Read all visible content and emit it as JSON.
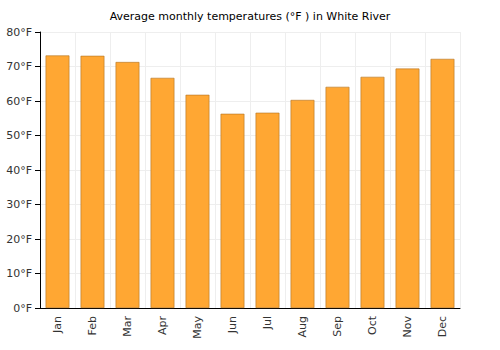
{
  "chart_data": {
    "type": "bar",
    "title": "Average monthly temperatures (°F ) in White River",
    "categories": [
      "Jan",
      "Feb",
      "Mar",
      "Apr",
      "May",
      "Jun",
      "Jul",
      "Aug",
      "Sep",
      "Oct",
      "Nov",
      "Dec"
    ],
    "values": [
      73.2,
      73.1,
      71.3,
      66.7,
      61.8,
      56.3,
      56.6,
      60.3,
      64.1,
      67.0,
      69.4,
      72.2
    ],
    "color": "#ffa733",
    "ylim": [
      0,
      80
    ],
    "yticks": [
      {
        "value": 0,
        "label": "0°F"
      },
      {
        "value": 10,
        "label": "10°F"
      },
      {
        "value": 20,
        "label": "20°F"
      },
      {
        "value": 30,
        "label": "30°F"
      },
      {
        "value": 40,
        "label": "40°F"
      },
      {
        "value": 50,
        "label": "50°F"
      },
      {
        "value": 60,
        "label": "60°F"
      },
      {
        "value": 70,
        "label": "70°F"
      },
      {
        "value": 80,
        "label": "80°F"
      }
    ],
    "grid": true
  }
}
